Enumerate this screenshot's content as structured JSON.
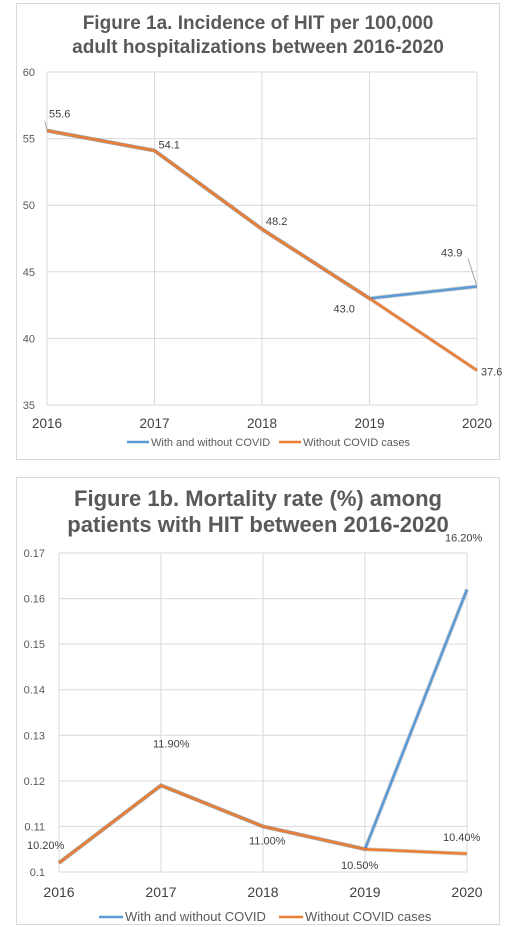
{
  "chart_data": [
    {
      "type": "line",
      "title": "Figure 1a. Incidence of HIT per 100,000\nadult hospitalizations between 2016-2020",
      "xlabel": "",
      "ylabel": "",
      "categories": [
        "2016",
        "2017",
        "2018",
        "2019",
        "2020"
      ],
      "ylim": [
        35,
        60
      ],
      "yticks": [
        "35",
        "40",
        "45",
        "50",
        "55",
        "60"
      ],
      "series": [
        {
          "name": "With and without COVID",
          "values": [
            55.6,
            54.1,
            48.2,
            43.0,
            43.9
          ],
          "color": "#5b9bd5"
        },
        {
          "name": "Without COVID cases",
          "values": [
            55.6,
            54.1,
            48.2,
            43.0,
            37.6
          ],
          "color": "#ed7d31"
        }
      ],
      "data_labels": [
        "55.6",
        "54.1",
        "48.2",
        "43.0",
        "43.9",
        "37.6"
      ],
      "grid": true,
      "legend": "bottom"
    },
    {
      "type": "line",
      "title": "Figure 1b. Mortality rate (%) among\npatients with HIT between 2016-2020",
      "xlabel": "",
      "ylabel": "",
      "categories": [
        "2016",
        "2017",
        "2018",
        "2019",
        "2020"
      ],
      "ylim": [
        0.1,
        0.17
      ],
      "yticks": [
        "0.1",
        "0.11",
        "0.12",
        "0.13",
        "0.14",
        "0.15",
        "0.16",
        "0.17"
      ],
      "series": [
        {
          "name": "With and without COVID",
          "values": [
            0.102,
            0.119,
            0.11,
            0.105,
            0.162
          ],
          "color": "#5b9bd5"
        },
        {
          "name": "Without COVID cases",
          "values": [
            0.102,
            0.119,
            0.11,
            0.105,
            0.104
          ],
          "color": "#ed7d31"
        }
      ],
      "data_labels": [
        "10.20%",
        "11.90%",
        "11.00%",
        "10.50%",
        "16.20%",
        "10.40%"
      ],
      "grid": true,
      "legend": "bottom"
    }
  ]
}
